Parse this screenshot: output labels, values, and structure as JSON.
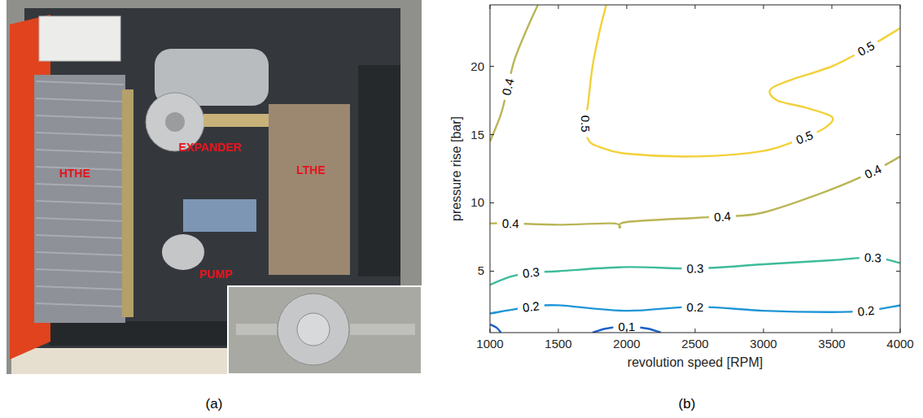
{
  "photo": {
    "panel_label": "(a)",
    "labels": [
      "HTHE",
      "EXPANDER",
      "LTHE",
      "PUMP"
    ]
  },
  "chart_data": {
    "type": "contour",
    "panel_label": "(b)",
    "x_label": "revolution speed [RPM]",
    "y_label": "pressure rise [bar]",
    "xlim": [
      1000,
      4000
    ],
    "ylim": [
      0.5,
      24.5
    ],
    "xticks": [
      1000,
      1500,
      2000,
      2500,
      3000,
      3500,
      4000
    ],
    "yticks": [
      5,
      10,
      15,
      20
    ],
    "grid": false,
    "series": [
      {
        "level": 0.1,
        "color": "#1a5fc8",
        "x": [
          1000,
          1050,
          1080
        ],
        "values": [
          1.1,
          0.85,
          0.5
        ]
      },
      {
        "level": 0.1,
        "color": "#1a5fc8",
        "x": [
          1750,
          1850,
          2000,
          2150,
          2250
        ],
        "values": [
          0.5,
          0.8,
          0.95,
          0.8,
          0.5
        ],
        "label_at": [
          2
        ]
      },
      {
        "level": 0.2,
        "color": "#1f95d6",
        "x": [
          1000,
          1300,
          1500,
          2000,
          2500,
          3000,
          3500,
          3750,
          4000
        ],
        "values": [
          1.9,
          2.4,
          2.5,
          2.1,
          2.4,
          2.1,
          2.0,
          2.1,
          2.5
        ],
        "label_at": [
          1,
          4,
          7
        ]
      },
      {
        "level": 0.3,
        "color": "#3dbb9b",
        "x": [
          1000,
          1150,
          1300,
          1500,
          2000,
          2500,
          3000,
          3500,
          3800,
          4000
        ],
        "values": [
          4.0,
          4.6,
          4.9,
          5.0,
          5.3,
          5.2,
          5.5,
          5.8,
          6.0,
          5.6
        ],
        "label_at": [
          2,
          5,
          8
        ]
      },
      {
        "level": 0.4,
        "color": "#bab556",
        "x": [
          1000,
          1150,
          1500,
          1900,
          1950,
          2000,
          2500,
          2700,
          3000,
          3500,
          3800,
          4000
        ],
        "values": [
          8.5,
          8.5,
          8.4,
          8.5,
          8.2,
          8.6,
          8.9,
          9.0,
          9.3,
          11.0,
          12.3,
          13.4
        ],
        "label_at": [
          1,
          7,
          10
        ]
      },
      {
        "level": 0.4,
        "color": "#bab556",
        "x": [
          1000,
          1080,
          1130,
          1180,
          1260,
          1350
        ],
        "values": [
          14.5,
          16.5,
          18.5,
          20.5,
          22.5,
          24.5
        ],
        "label_at": [
          2
        ]
      },
      {
        "level": 0.5,
        "color": "#f2d13a",
        "x": [
          1850,
          1800,
          1750,
          1720,
          1700,
          1720,
          1800,
          2000,
          2500,
          3000,
          3300,
          3450,
          3500,
          3300,
          3100,
          3050,
          3200,
          3500,
          3750,
          4000
        ],
        "values": [
          24.5,
          22.5,
          20,
          17.5,
          15.8,
          14.6,
          14.1,
          13.6,
          13.4,
          13.8,
          14.8,
          15.5,
          16.3,
          17,
          17.5,
          18.3,
          19,
          20,
          21.3,
          22.8
        ],
        "label_at": [
          4,
          10,
          18
        ]
      }
    ]
  }
}
